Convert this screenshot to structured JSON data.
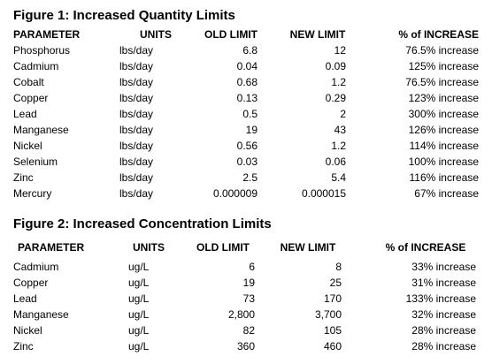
{
  "figures": [
    {
      "title": "Figure 1: Increased Quantity Limits",
      "headers": [
        "PARAMETER",
        "UNITS",
        "OLD LIMIT",
        "NEW LIMIT",
        "% of INCREASE"
      ],
      "rows": [
        [
          "Phosphorus",
          "lbs/day",
          "6.8",
          "12",
          "76.5% increase"
        ],
        [
          "Cadmium",
          "lbs/day",
          "0.04",
          "0.09",
          "125% increase"
        ],
        [
          "Cobalt",
          "lbs/day",
          "0.68",
          "1.2",
          "76.5% increase"
        ],
        [
          "Copper",
          "lbs/day",
          "0.13",
          "0.29",
          "123% increase"
        ],
        [
          "Lead",
          "lbs/day",
          "0.5",
          "2",
          "300% increase"
        ],
        [
          "Manganese",
          "lbs/day",
          "19",
          "43",
          "126% increase"
        ],
        [
          "Nickel",
          "lbs/day",
          "0.56",
          "1.2",
          "114% increase"
        ],
        [
          "Selenium",
          "lbs/day",
          "0.03",
          "0.06",
          "100% increase"
        ],
        [
          "Zinc",
          "lbs/day",
          "2.5",
          "5.4",
          "116% increase"
        ],
        [
          "Mercury",
          "lbs/day",
          "0.000009",
          "0.000015",
          "67% increase"
        ]
      ]
    },
    {
      "title": "Figure 2: Increased Concentration Limits",
      "headers": [
        "PARAMETER",
        "UNITS",
        "OLD LIMIT",
        "NEW LIMIT",
        "% of INCREASE"
      ],
      "rows": [
        [
          "Cadmium",
          "ug/L",
          "6",
          "8",
          "33% increase"
        ],
        [
          "Copper",
          "ug/L",
          "19",
          "25",
          "31% increase"
        ],
        [
          "Lead",
          "ug/L",
          "73",
          "170",
          "133% increase"
        ],
        [
          "Manganese",
          "ug/L",
          "2,800",
          "3,700",
          "32% increase"
        ],
        [
          "Nickel",
          "ug/L",
          "82",
          "105",
          "28% increase"
        ],
        [
          "Zinc",
          "ug/L",
          "360",
          "460",
          "28% increase"
        ]
      ]
    }
  ]
}
